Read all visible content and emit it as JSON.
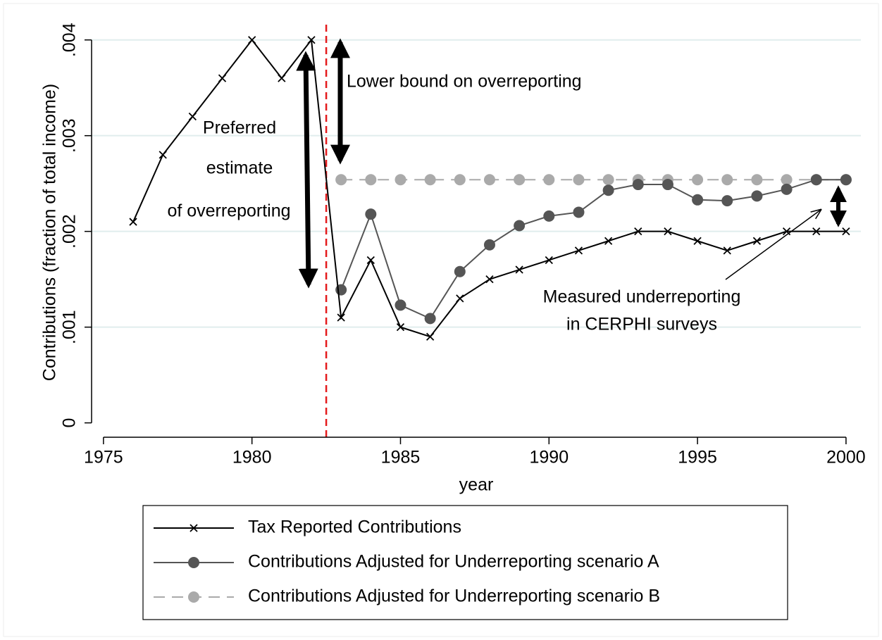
{
  "chart_data": {
    "type": "line",
    "x_label": "year",
    "y_label": "Contributions (fraction of total income)",
    "x": [
      1976,
      1977,
      1978,
      1979,
      1980,
      1981,
      1982,
      1983,
      1984,
      1985,
      1986,
      1987,
      1988,
      1989,
      1990,
      1991,
      1992,
      1993,
      1994,
      1995,
      1996,
      1997,
      1998,
      1999,
      2000
    ],
    "series": [
      {
        "name": "Tax Reported Contributions",
        "color": "#000000",
        "marker": "x",
        "dashed": false,
        "values": [
          0.0021,
          0.0028,
          0.0032,
          0.0036,
          0.004,
          0.0036,
          0.004,
          0.0011,
          0.0017,
          0.001,
          0.0009,
          0.0013,
          0.0015,
          0.0016,
          0.0017,
          0.0018,
          0.0019,
          0.002,
          0.002,
          0.0019,
          0.0018,
          0.0019,
          0.002,
          0.002,
          0.002
        ]
      },
      {
        "name": "Contributions Adjusted for Underreporting scenario A",
        "color": "#555555",
        "marker": "circle",
        "dashed": false,
        "values": [
          null,
          null,
          null,
          null,
          null,
          null,
          null,
          0.00139,
          0.00218,
          0.00123,
          0.00109,
          0.00158,
          0.00186,
          0.00206,
          0.00216,
          0.0022,
          0.00243,
          0.00249,
          0.00249,
          0.00233,
          0.00232,
          0.00237,
          0.00244,
          0.00254,
          0.00254
        ]
      },
      {
        "name": "Contributions Adjusted for Underreporting scenario B",
        "color": "#aaaaaa",
        "marker": "circle",
        "dashed": true,
        "values": [
          null,
          null,
          null,
          null,
          null,
          null,
          null,
          0.00254,
          0.00254,
          0.00254,
          0.00254,
          0.00254,
          0.00254,
          0.00254,
          0.00254,
          0.00254,
          0.00254,
          0.00254,
          0.00254,
          0.00254,
          0.00254,
          0.00254,
          0.00254,
          0.00254,
          0.00254
        ]
      }
    ],
    "xlim": [
      1974.6,
      2000.5
    ],
    "ylim": [
      -0.00015,
      0.00427
    ],
    "xticks": [
      1975,
      1980,
      1985,
      1990,
      1995,
      2000
    ],
    "yticks": [
      {
        "value": 0,
        "label": "0"
      },
      {
        "value": 0.001,
        "label": ".001"
      },
      {
        "value": 0.002,
        "label": ".002"
      },
      {
        "value": 0.003,
        "label": ".003"
      },
      {
        "value": 0.004,
        "label": ".004"
      }
    ],
    "grid": true,
    "reference_line": {
      "x": 1982.5,
      "color": "#e41a1c"
    },
    "annotations": [
      "Preferred",
      "estimate",
      "of overreporting",
      "Lower bound on overreporting",
      "Measured underreporting",
      "in CERPHI surveys"
    ]
  }
}
